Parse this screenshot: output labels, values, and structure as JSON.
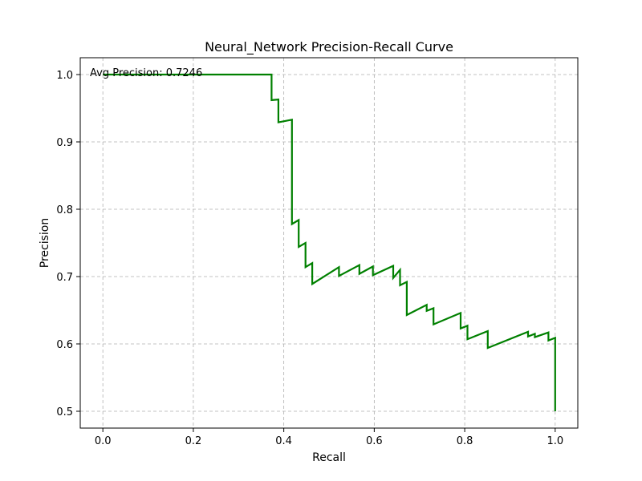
{
  "chart_data": {
    "type": "line",
    "title": "Neural_Network Precision-Recall Curve",
    "xlabel": "Recall",
    "ylabel": "Precision",
    "xlim": [
      -0.05,
      1.05
    ],
    "ylim": [
      0.475,
      1.025
    ],
    "xticks": [
      0.0,
      0.2,
      0.4,
      0.6,
      0.8,
      1.0
    ],
    "xtick_labels": [
      "0.0",
      "0.2",
      "0.4",
      "0.6",
      "0.8",
      "1.0"
    ],
    "yticks": [
      0.5,
      0.6,
      0.7,
      0.8,
      0.9,
      1.0
    ],
    "ytick_labels": [
      "0.5",
      "0.6",
      "0.7",
      "0.8",
      "0.9",
      "1.0"
    ],
    "grid": true,
    "annotation": "Avg Precision: 0.7246",
    "series": [
      {
        "color": "#008000",
        "x": [
          0.0,
          0.373,
          0.373,
          0.388,
          0.388,
          0.418,
          0.418,
          0.433,
          0.433,
          0.448,
          0.448,
          0.463,
          0.463,
          0.522,
          0.522,
          0.567,
          0.567,
          0.597,
          0.597,
          0.642,
          0.642,
          0.657,
          0.657,
          0.672,
          0.672,
          0.716,
          0.716,
          0.731,
          0.731,
          0.791,
          0.791,
          0.806,
          0.806,
          0.851,
          0.851,
          0.94,
          0.94,
          0.955,
          0.955,
          0.985,
          0.985,
          1.0,
          1.0
        ],
        "y": [
          1.0,
          1.0,
          0.962,
          0.963,
          0.929,
          0.933,
          0.778,
          0.784,
          0.744,
          0.75,
          0.714,
          0.72,
          0.689,
          0.714,
          0.701,
          0.717,
          0.704,
          0.715,
          0.702,
          0.716,
          0.698,
          0.71,
          0.687,
          0.692,
          0.643,
          0.658,
          0.649,
          0.653,
          0.629,
          0.646,
          0.623,
          0.627,
          0.607,
          0.619,
          0.594,
          0.618,
          0.611,
          0.615,
          0.61,
          0.617,
          0.605,
          0.609,
          0.5
        ]
      }
    ]
  }
}
